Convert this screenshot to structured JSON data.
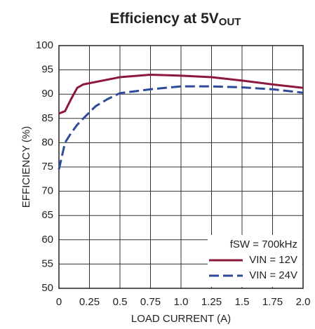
{
  "chart_data": {
    "type": "line",
    "title": "Efficiency at 5V",
    "title_sub": "OUT",
    "x_label": "LOAD CURRENT (A)",
    "y_label": "EFFICIENCY (%)",
    "annotation": "fSW = 700kHz",
    "x": [
      0,
      0.05,
      0.1,
      0.15,
      0.2,
      0.3,
      0.4,
      0.5,
      0.75,
      1.0,
      1.25,
      1.5,
      1.75,
      2.0
    ],
    "series": [
      {
        "name": "VIN = 12V",
        "color": "#8b1a3a",
        "dash": false,
        "values": [
          86,
          86.5,
          89,
          91.3,
          92,
          92.5,
          93,
          93.5,
          94,
          93.8,
          93.5,
          92.8,
          92,
          91.3
        ]
      },
      {
        "name": "VIN = 24V",
        "color": "#2e4a9a",
        "dash": true,
        "values": [
          74.5,
          80,
          82,
          83.7,
          85,
          87.5,
          89,
          90.2,
          91,
          91.6,
          91.6,
          91.4,
          91,
          90.3
        ]
      }
    ],
    "xlim": [
      0,
      2.0
    ],
    "ylim": [
      50,
      100
    ],
    "xticks": [
      0,
      0.25,
      0.5,
      0.75,
      {
        "value": 1.0,
        "label": "1.0"
      },
      1.25,
      1.5,
      1.75,
      {
        "value": 2.0,
        "label": "2.0"
      }
    ],
    "yticks": [
      50,
      55,
      60,
      65,
      70,
      75,
      80,
      85,
      90,
      95,
      100
    ],
    "grid": true,
    "legend": "lower right"
  }
}
